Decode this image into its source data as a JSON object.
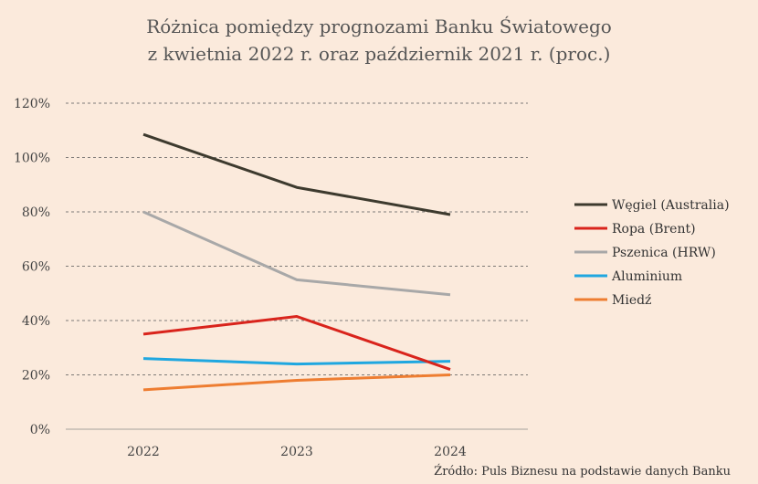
{
  "chart_data": {
    "type": "line",
    "title": "Różnica pomiędzy prognozami Banku Światowego",
    "subtitle": "z kwietnia 2022 r. oraz październik 2021 r. (proc.)",
    "x": [
      "2022",
      "2023",
      "2024"
    ],
    "ylim": [
      0,
      120
    ],
    "yticks": [
      0,
      20,
      40,
      60,
      80,
      100,
      120
    ],
    "ytick_labels": [
      "0%",
      "20%",
      "40%",
      "60%",
      "80%",
      "100%",
      "120%"
    ],
    "grid": "horizontal dashed",
    "legend_position": "right",
    "series": [
      {
        "name": "Węgiel (Australia)",
        "values": [
          108.5,
          89,
          79
        ],
        "color": "#3d3a2e"
      },
      {
        "name": "Ropa (Brent)",
        "values": [
          35,
          41.5,
          22
        ],
        "color": "#d9241c"
      },
      {
        "name": "Pszenica (HRW)",
        "values": [
          80,
          55,
          49.5
        ],
        "color": "#a8a8a8"
      },
      {
        "name": "Aluminium",
        "values": [
          26,
          24,
          25
        ],
        "color": "#1fa7e0"
      },
      {
        "name": "Miedź",
        "values": [
          14.5,
          18,
          20
        ],
        "color": "#ee7d31"
      }
    ],
    "source": "Źródło: Puls Biznesu na podstawie danych Banku"
  }
}
